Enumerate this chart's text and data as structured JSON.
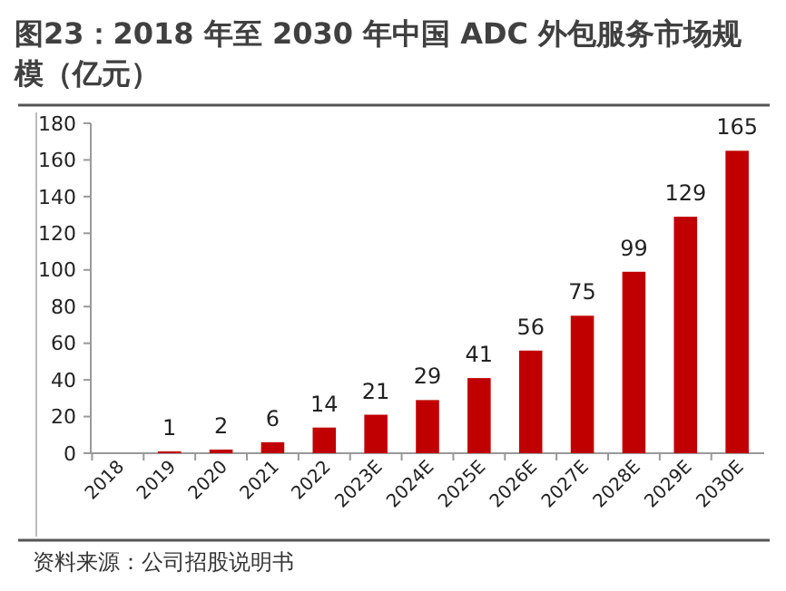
{
  "chart_data": {
    "type": "bar",
    "title": "图23：2018 年至 2030 年中国 ADC 外包服务市场规模（亿元）",
    "categories": [
      "2018",
      "2019",
      "2020",
      "2021",
      "2022",
      "2023E",
      "2024E",
      "2025E",
      "2026E",
      "2027E",
      "2028E",
      "2029E",
      "2030E"
    ],
    "values": [
      null,
      1,
      2,
      6,
      14,
      21,
      29,
      41,
      56,
      75,
      99,
      129,
      165
    ],
    "color": "#c00000",
    "ylim": [
      0,
      180
    ],
    "yticks": [
      0,
      20,
      40,
      60,
      80,
      100,
      120,
      140,
      160,
      180
    ],
    "data_labels": true,
    "annotations": [
      "资料来源：公司招股说明书"
    ]
  }
}
